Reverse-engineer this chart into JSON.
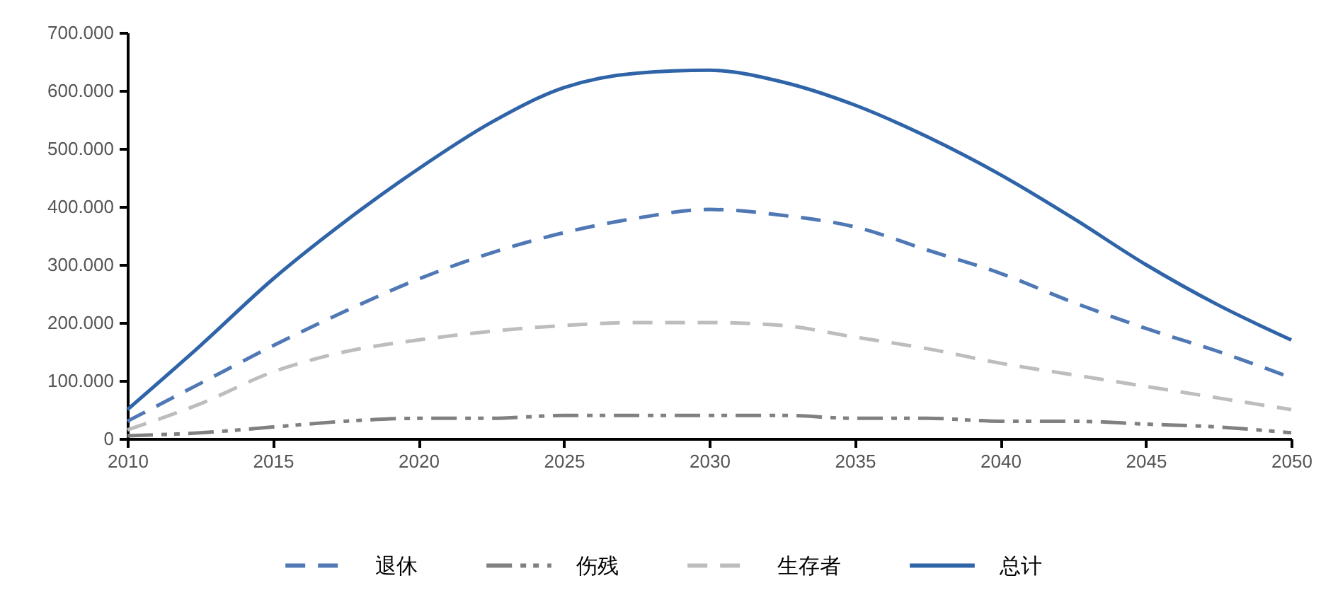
{
  "chart_data": {
    "type": "line",
    "x": [
      2010,
      2012.5,
      2015,
      2017.5,
      2020,
      2022.5,
      2025,
      2027.5,
      2030,
      2032.5,
      2035,
      2037.5,
      2040,
      2042.5,
      2045,
      2047.5,
      2050
    ],
    "series": [
      {
        "name": "退休",
        "color": "#4f78b5",
        "line_style": "dashed",
        "values": [
          30000,
          95000,
          160000,
          220000,
          275000,
          320000,
          355000,
          380000,
          395000,
          385000,
          365000,
          325000,
          285000,
          235000,
          190000,
          150000,
          105000
        ]
      },
      {
        "name": "伤残",
        "color": "#808080",
        "line_style": "dashdot",
        "values": [
          5000,
          10000,
          20000,
          30000,
          35000,
          35000,
          40000,
          40000,
          40000,
          40000,
          35000,
          35000,
          30000,
          30000,
          25000,
          20000,
          10000
        ]
      },
      {
        "name": "生存者",
        "color": "#bdbdbd",
        "line_style": "dashed",
        "values": [
          15000,
          60000,
          115000,
          150000,
          170000,
          185000,
          195000,
          200000,
          200000,
          195000,
          175000,
          155000,
          130000,
          110000,
          90000,
          70000,
          50000
        ]
      },
      {
        "name": "总计",
        "color": "#2f64a8",
        "line_style": "solid",
        "values": [
          50000,
          160000,
          275000,
          375000,
          465000,
          545000,
          605000,
          630000,
          635000,
          615000,
          575000,
          520000,
          455000,
          380000,
          300000,
          230000,
          170000
        ]
      }
    ],
    "xlim": [
      2010,
      2050
    ],
    "xticks": [
      2010,
      2015,
      2020,
      2025,
      2030,
      2035,
      2040,
      2045,
      2050
    ],
    "ylim": [
      0,
      700000
    ],
    "yticks": [
      0,
      {
        "value": 100000,
        "label": "100.000"
      },
      {
        "value": 200000,
        "label": "200.000"
      },
      {
        "value": 300000,
        "label": "300.000"
      },
      {
        "value": 400000,
        "label": "400.000"
      },
      {
        "value": 500000,
        "label": "500.000"
      },
      {
        "value": 600000,
        "label": "600.000"
      },
      {
        "value": 700000,
        "label": "700.000"
      }
    ],
    "legend": "bottom",
    "grid": false
  }
}
